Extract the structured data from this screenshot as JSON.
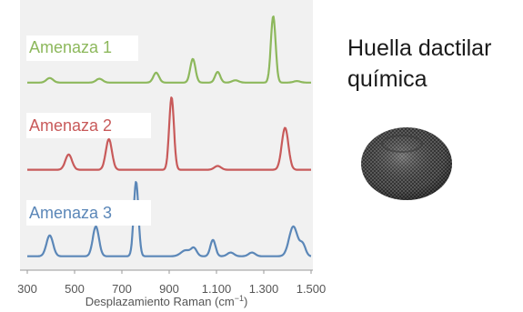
{
  "side_title": {
    "line1": "Huella dactilar",
    "line2": "química"
  },
  "sample_image": {
    "description_icon": "scrubber-sponge-icon",
    "color": "#5a5a5a"
  },
  "chart_data": {
    "type": "line",
    "title": "",
    "xlabel": "Desplazamiento Raman (cm",
    "xlabel_superscript": "−1",
    "xlabel_suffix": ")",
    "xlim": [
      300,
      1500
    ],
    "xticks": [
      300,
      500,
      700,
      900,
      1100,
      1300,
      1500
    ],
    "xtick_labels": [
      "300",
      "500",
      "700",
      "900",
      "1.100",
      "1.300",
      "1.500"
    ],
    "grid": false,
    "legend": "inline-labels",
    "series": [
      {
        "name": "Amenaza 1",
        "color": "#8db85c",
        "baseline": 0.05,
        "peaks": [
          [
            395,
            0.06,
            14
          ],
          [
            605,
            0.05,
            14
          ],
          [
            845,
            0.13,
            12
          ],
          [
            1000,
            0.31,
            11
          ],
          [
            1105,
            0.14,
            11
          ],
          [
            1180,
            0.03,
            14
          ],
          [
            1340,
            0.87,
            10
          ],
          [
            1440,
            0.02,
            14
          ]
        ]
      },
      {
        "name": "Amenaza 2",
        "color": "#c85a5a",
        "baseline": 0.04,
        "peaks": [
          [
            475,
            0.2,
            14
          ],
          [
            645,
            0.4,
            13
          ],
          [
            910,
            0.95,
            10
          ],
          [
            1105,
            0.05,
            14
          ],
          [
            1390,
            0.55,
            14
          ]
        ]
      },
      {
        "name": "Amenaza 3",
        "color": "#5b87b8",
        "baseline": 0.04,
        "peaks": [
          [
            395,
            0.28,
            14
          ],
          [
            590,
            0.4,
            13
          ],
          [
            760,
            1.0,
            10
          ],
          [
            970,
            0.08,
            20
          ],
          [
            1005,
            0.1,
            12
          ],
          [
            1085,
            0.22,
            11
          ],
          [
            1160,
            0.05,
            14
          ],
          [
            1250,
            0.05,
            14
          ],
          [
            1425,
            0.4,
            18
          ],
          [
            1465,
            0.15,
            12
          ]
        ]
      }
    ]
  }
}
